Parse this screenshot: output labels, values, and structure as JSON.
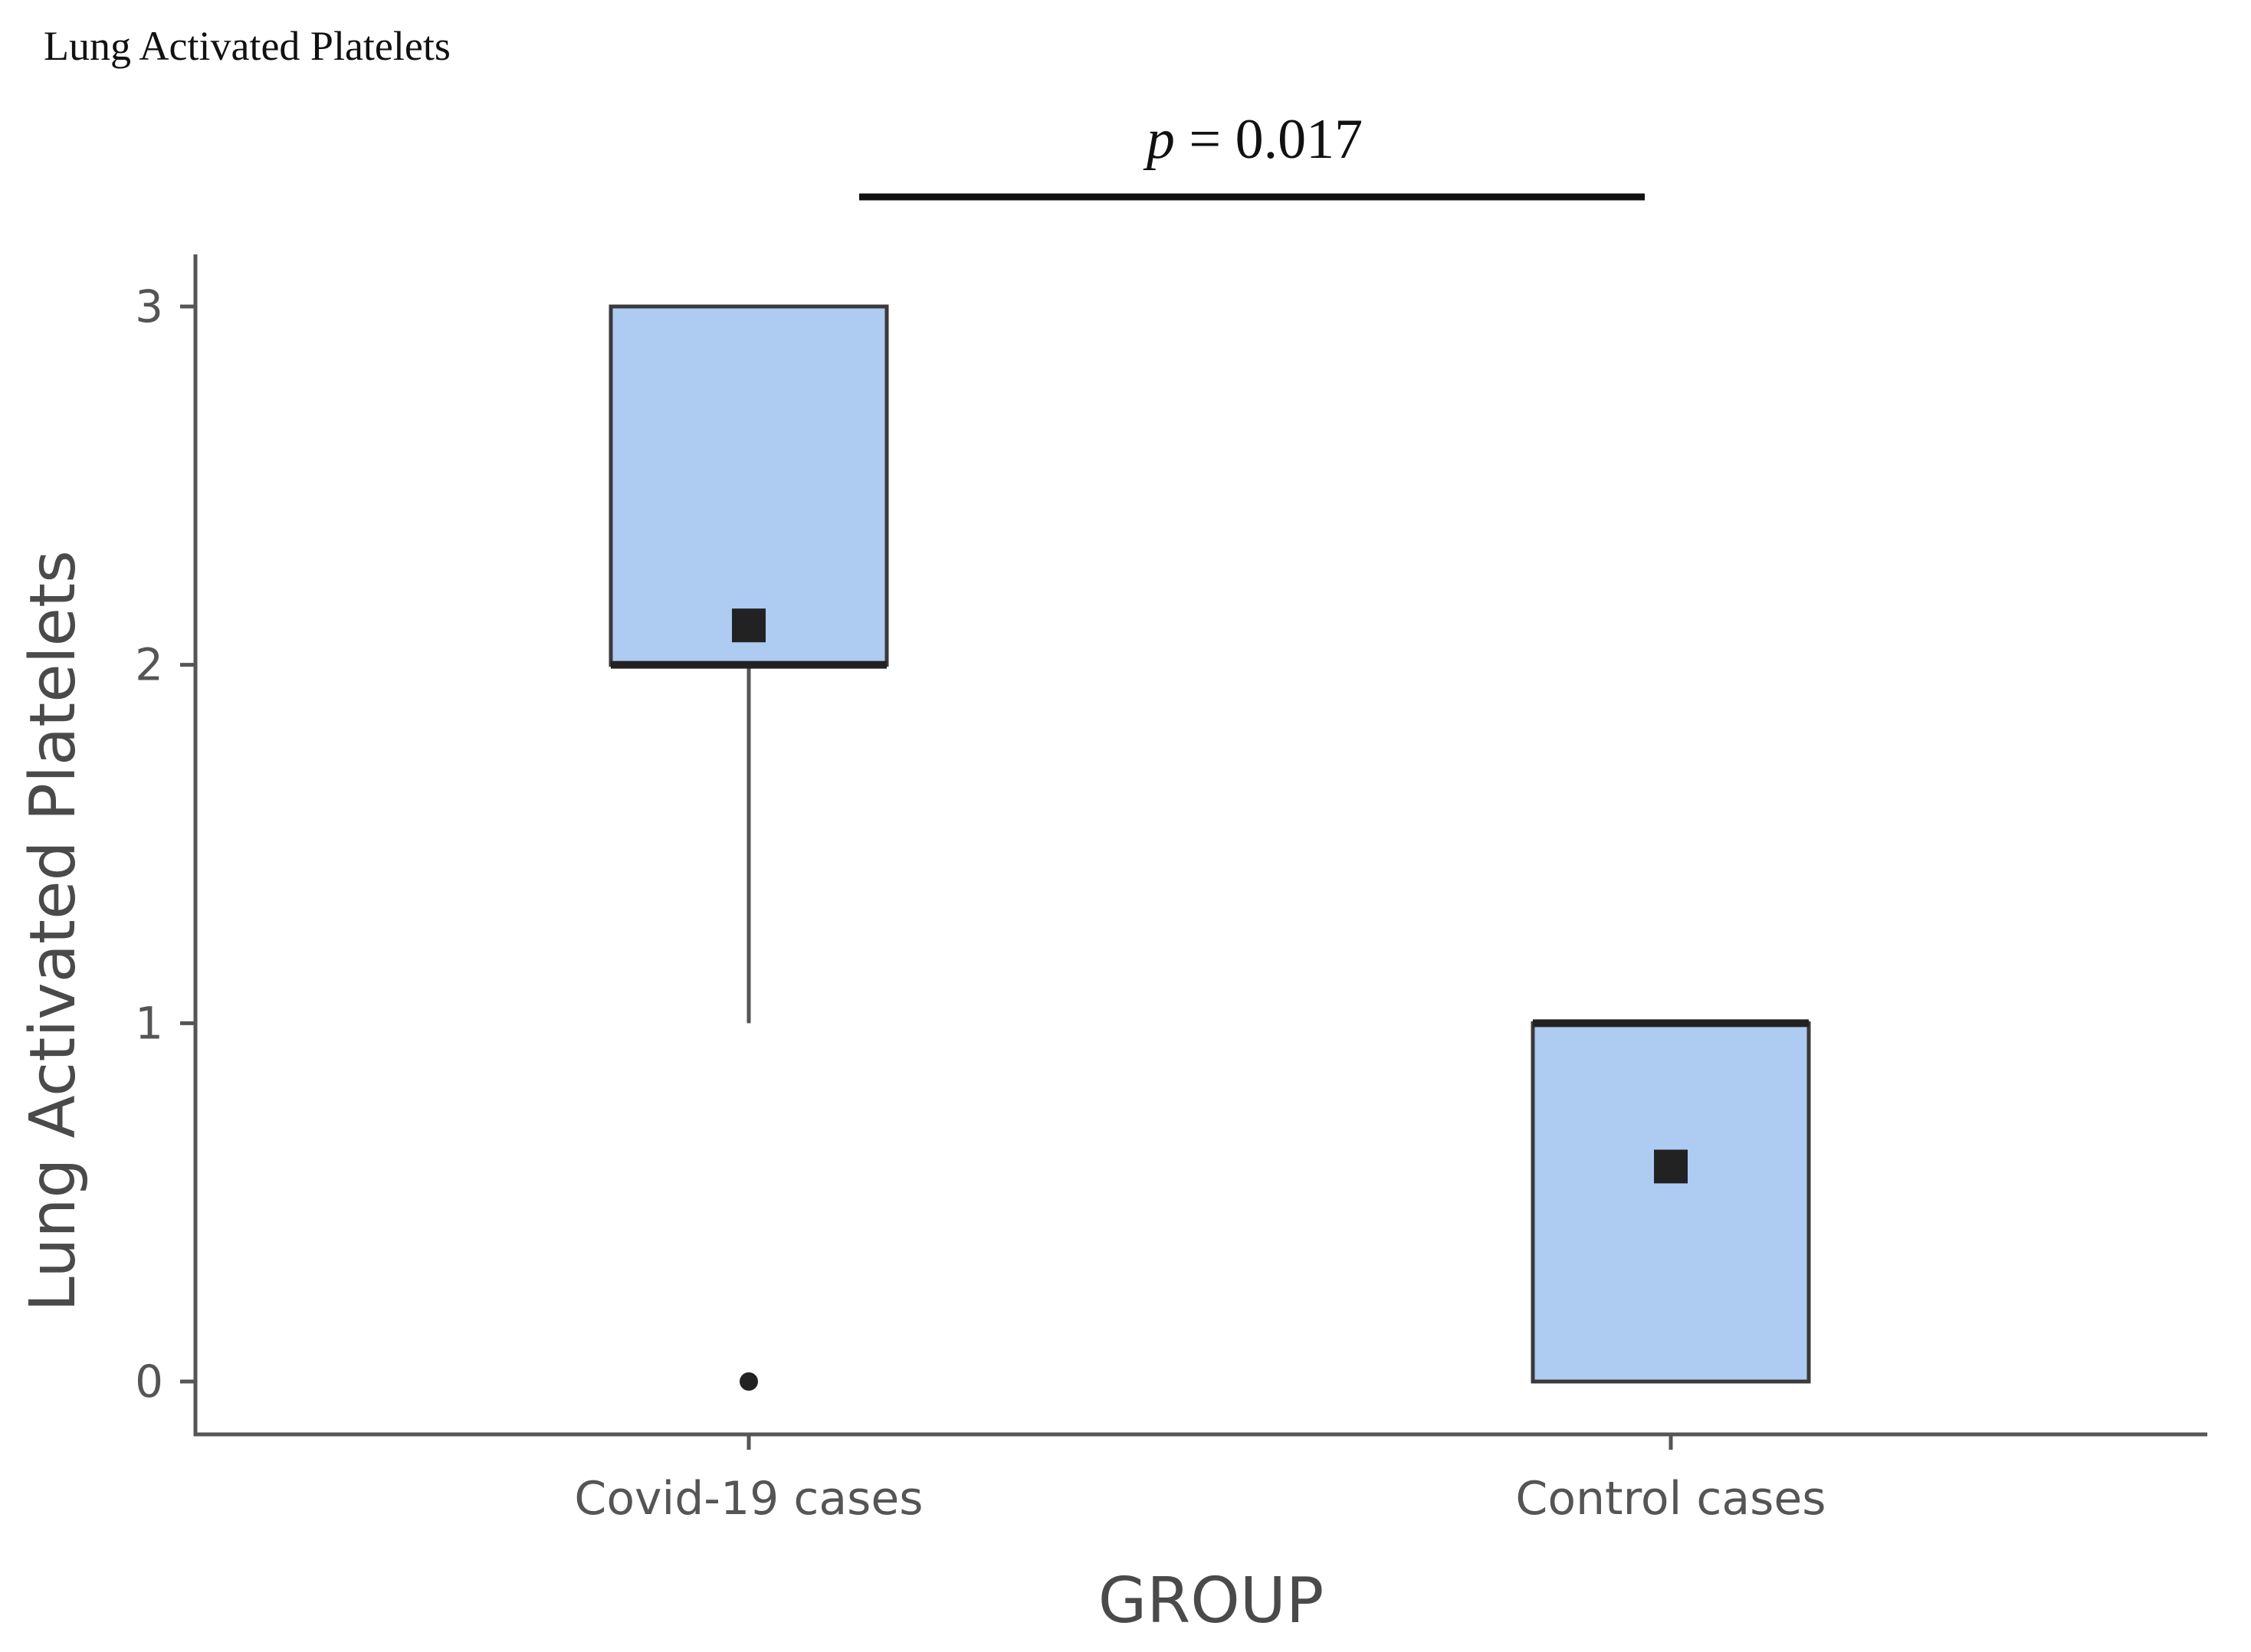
{
  "chart_data": {
    "type": "box",
    "title": "Lung Activated Platelets",
    "xlabel": "GROUP",
    "ylabel": "Lung Activated Platelets",
    "ylim": [
      -0.15,
      3.15
    ],
    "yticks": [
      0,
      1,
      2,
      3
    ],
    "grid": false,
    "legend": "none",
    "categories": [
      "Covid-19 cases",
      "Control cases"
    ],
    "series": [
      {
        "category": "Covid-19 cases",
        "q1": 2,
        "median": 2,
        "q3": 3,
        "whisker_low": 1,
        "whisker_high": 3,
        "mean": 2.11,
        "outliers": [
          0
        ]
      },
      {
        "category": "Control cases",
        "q1": 0,
        "median": 1,
        "q3": 1,
        "whisker_low": 0,
        "whisker_high": 1,
        "mean": 0.6,
        "outliers": []
      }
    ],
    "annotation": {
      "p_symbol": "p",
      "p_value_text": " = 0.017",
      "between": [
        "Covid-19 cases",
        "Control cases"
      ]
    },
    "colors": {
      "box_fill": "#aecbf2",
      "box_stroke": "#3a3a3a",
      "median_line": "#222222",
      "mean_marker": "#222222",
      "axis": "#555555"
    }
  }
}
